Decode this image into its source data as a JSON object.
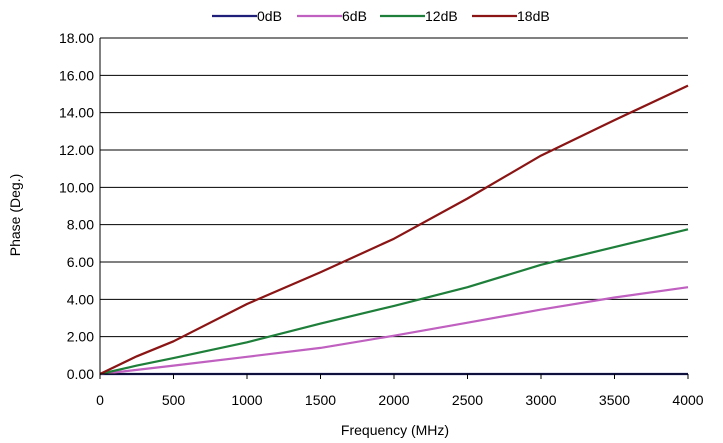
{
  "chart_data": {
    "type": "line",
    "title": "",
    "xlabel": "Frequency (MHz)",
    "ylabel": "Phase (Deg.)",
    "xlim": [
      0,
      4000
    ],
    "ylim": [
      0,
      18
    ],
    "x_ticks": [
      "0",
      "500",
      "1000",
      "1500",
      "2000",
      "2500",
      "3000",
      "3500",
      "4000"
    ],
    "y_ticks": [
      "0.00",
      "2.00",
      "4.00",
      "6.00",
      "8.00",
      "10.00",
      "12.00",
      "14.00",
      "16.00",
      "18.00"
    ],
    "grid": "horizontal",
    "legend_position": "top",
    "series": [
      {
        "name": "0dB",
        "color": "#1f1f7a",
        "x": [
          0,
          4000
        ],
        "values": [
          0.0,
          0.0
        ]
      },
      {
        "name": "6dB",
        "color": "#c060c0",
        "x": [
          0,
          250,
          500,
          1000,
          1500,
          2000,
          2500,
          3000,
          3500,
          4000
        ],
        "values": [
          0.0,
          0.22,
          0.45,
          0.92,
          1.4,
          2.05,
          2.75,
          3.45,
          4.1,
          4.65
        ]
      },
      {
        "name": "12dB",
        "color": "#1e7f3a",
        "x": [
          0,
          250,
          500,
          1000,
          1500,
          2000,
          2500,
          3000,
          3500,
          4000
        ],
        "values": [
          0.0,
          0.45,
          0.85,
          1.7,
          2.7,
          3.65,
          4.65,
          5.85,
          6.8,
          7.75
        ]
      },
      {
        "name": "18dB",
        "color": "#8b1414",
        "x": [
          0,
          250,
          500,
          1000,
          1500,
          2000,
          2500,
          3000,
          3500,
          4000
        ],
        "values": [
          0.0,
          0.95,
          1.75,
          3.75,
          5.45,
          7.25,
          9.4,
          11.7,
          13.6,
          15.45
        ]
      }
    ]
  }
}
